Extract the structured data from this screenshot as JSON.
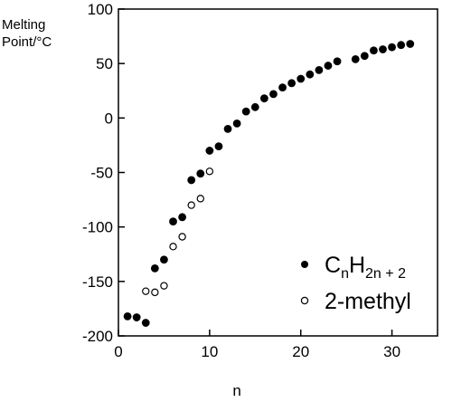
{
  "chart_data": {
    "type": "scatter",
    "title": "",
    "ylabel_line1": "Melting",
    "ylabel_line2": "Point/°C",
    "xlabel": "n",
    "xlim": [
      0,
      35
    ],
    "ylim": [
      -200,
      100
    ],
    "xticks": [
      0,
      10,
      20,
      30
    ],
    "yticks": [
      100,
      50,
      0,
      -50,
      -100,
      -150,
      -200
    ],
    "grid": false,
    "legend_position": "bottom-right",
    "series": [
      {
        "name": "CnH2n+2",
        "legend_main_1": "C",
        "legend_sub_1": "n",
        "legend_main_2": "H",
        "legend_sub_2": "2n + 2",
        "marker": "filled-circle",
        "points": [
          [
            1,
            -182
          ],
          [
            2,
            -183
          ],
          [
            3,
            -188
          ],
          [
            4,
            -138
          ],
          [
            5,
            -130
          ],
          [
            6,
            -95
          ],
          [
            7,
            -91
          ],
          [
            8,
            -57
          ],
          [
            9,
            -51
          ],
          [
            10,
            -30
          ],
          [
            11,
            -26
          ],
          [
            12,
            -10
          ],
          [
            13,
            -5
          ],
          [
            14,
            6
          ],
          [
            15,
            10
          ],
          [
            16,
            18
          ],
          [
            17,
            22
          ],
          [
            18,
            28
          ],
          [
            19,
            32
          ],
          [
            20,
            36
          ],
          [
            21,
            40
          ],
          [
            22,
            44
          ],
          [
            23,
            48
          ],
          [
            24,
            52
          ],
          [
            26,
            54
          ],
          [
            27,
            57
          ],
          [
            28,
            62
          ],
          [
            29,
            63
          ],
          [
            30,
            65
          ],
          [
            31,
            67
          ],
          [
            32,
            68
          ]
        ]
      },
      {
        "name": "2-methyl",
        "marker": "open-circle",
        "points": [
          [
            3,
            -159
          ],
          [
            4,
            -160
          ],
          [
            5,
            -154
          ],
          [
            6,
            -118
          ],
          [
            7,
            -109
          ],
          [
            8,
            -80
          ],
          [
            9,
            -74
          ],
          [
            10,
            -49
          ]
        ]
      }
    ]
  }
}
